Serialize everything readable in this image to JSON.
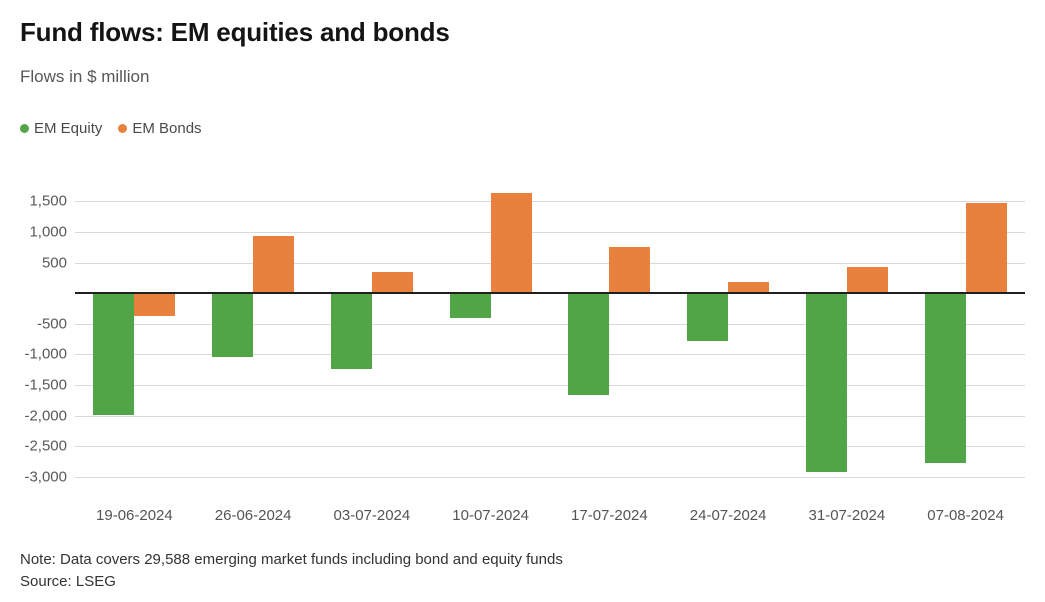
{
  "header": {
    "title": "Fund flows: EM equities and bonds",
    "subtitle": "Flows in $ million"
  },
  "legend": [
    {
      "label": "EM Equity",
      "color": "#52a546"
    },
    {
      "label": "EM Bonds",
      "color": "#e8813e"
    }
  ],
  "chart_data": {
    "type": "bar",
    "title": "Fund flows: EM equities and bonds",
    "subtitle": "Flows in $ million",
    "xlabel": "",
    "ylabel": "Flows in $ million",
    "categories": [
      "19-06-2024",
      "26-06-2024",
      "03-07-2024",
      "10-07-2024",
      "17-07-2024",
      "24-07-2024",
      "31-07-2024",
      "07-08-2024"
    ],
    "series": [
      {
        "name": "EM Equity",
        "color": "#52a546",
        "values": [
          -2000,
          -1050,
          -1240,
          -410,
          -1660,
          -780,
          -2930,
          -2770
        ]
      },
      {
        "name": "EM Bonds",
        "color": "#e8813e",
        "values": [
          -375,
          930,
          350,
          1630,
          760,
          180,
          420,
          1480
        ]
      }
    ],
    "ylim": [
      -3250,
      1750
    ],
    "yticks": [
      1500,
      1000,
      500,
      0,
      -500,
      -1000,
      -1500,
      -2000,
      -2500,
      -3000
    ],
    "zero_line": true,
    "grid": true,
    "legend_position": "top-left",
    "colors": {
      "grid": "#d9d9d9",
      "zero_line": "#1f1f1f",
      "tick_text": "#595959"
    }
  },
  "footer": {
    "note": "Note: Data covers 29,588 emerging market funds including bond and equity funds",
    "source": "Source: LSEG"
  }
}
